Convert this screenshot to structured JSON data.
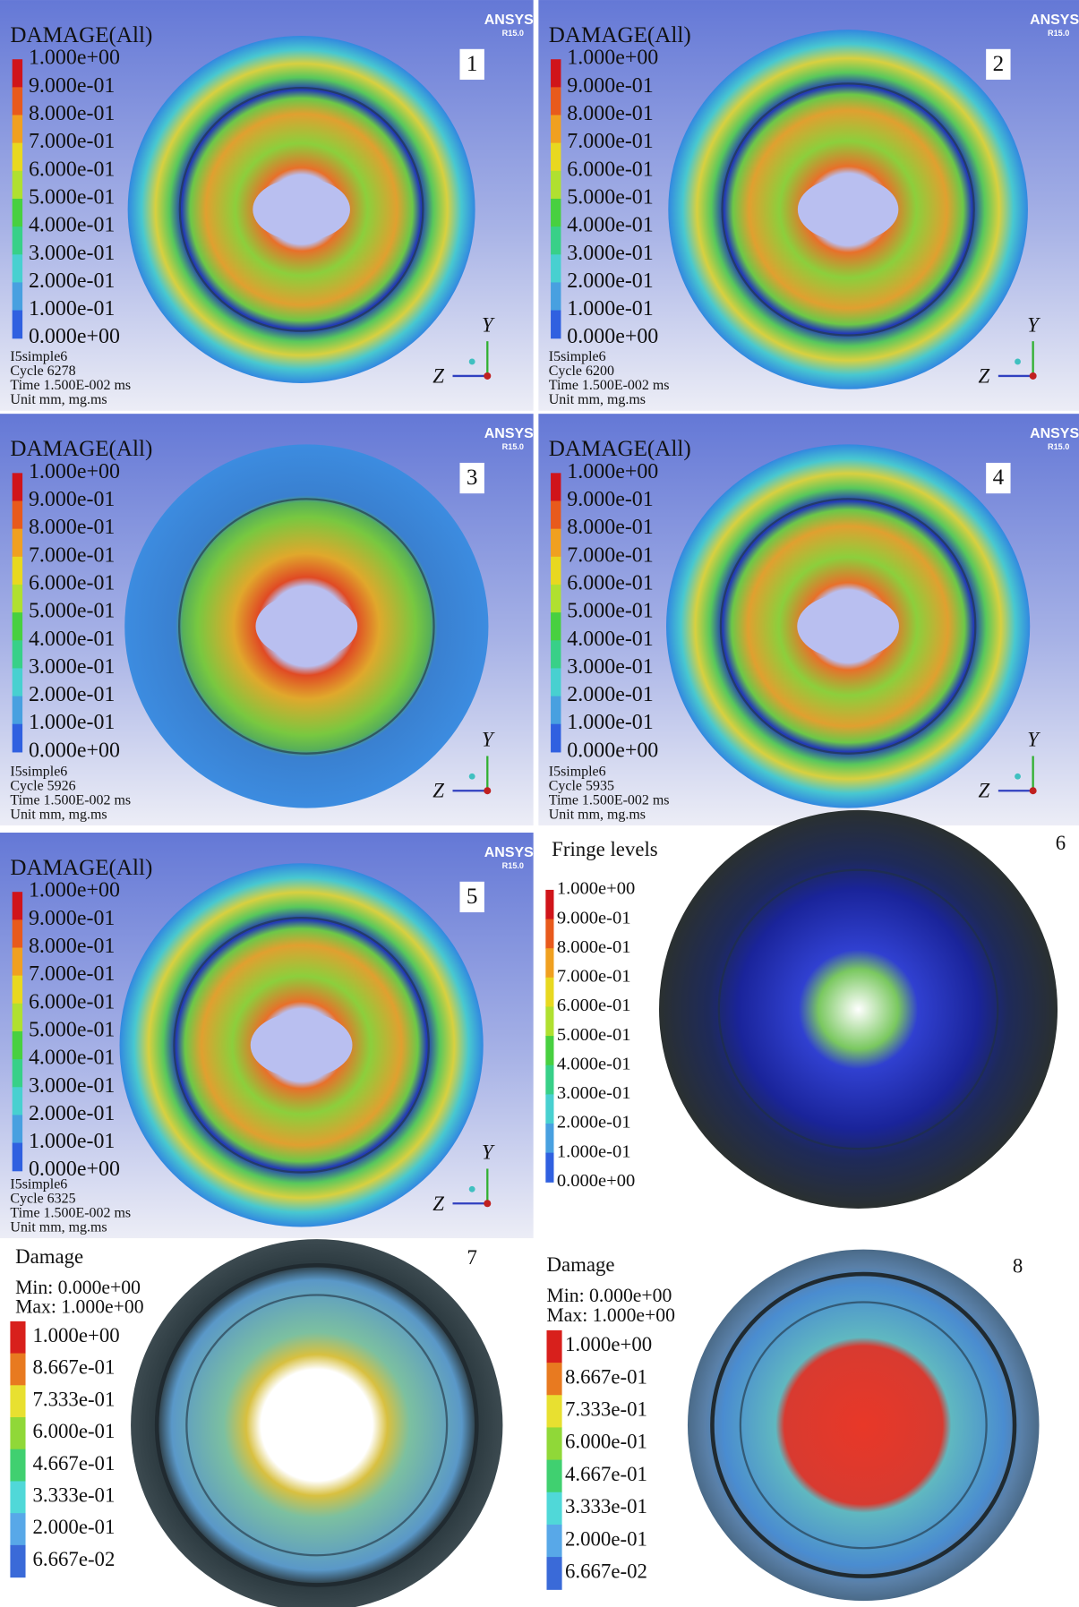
{
  "panels": [
    {
      "number": "1",
      "brand": "ANSYS",
      "version": "R15.0",
      "title": "DAMAGE(All)",
      "levels": [
        "1.000e+00",
        "9.000e-01",
        "8.000e-01",
        "7.000e-01",
        "6.000e-01",
        "5.000e-01",
        "4.000e-01",
        "3.000e-01",
        "2.000e-01",
        "1.000e-01",
        "0.000e+00"
      ],
      "info": [
        "I5simple6",
        "Cycle 6278",
        "Time 1.500E-002 ms",
        "Unit mm, mg.ms"
      ],
      "axes": [
        "Y",
        "Z"
      ]
    },
    {
      "number": "2",
      "brand": "ANSYS",
      "version": "R15.0",
      "title": "DAMAGE(All)",
      "levels": [
        "1.000e+00",
        "9.000e-01",
        "8.000e-01",
        "7.000e-01",
        "6.000e-01",
        "5.000e-01",
        "4.000e-01",
        "3.000e-01",
        "2.000e-01",
        "1.000e-01",
        "0.000e+00"
      ],
      "info": [
        "I5simple6",
        "Cycle 6200",
        "Time 1.500E-002 ms",
        "Unit mm, mg.ms"
      ],
      "axes": [
        "Y",
        "Z"
      ]
    },
    {
      "number": "3",
      "brand": "ANSYS",
      "version": "R15.0",
      "title": "DAMAGE(All)",
      "levels": [
        "1.000e+00",
        "9.000e-01",
        "8.000e-01",
        "7.000e-01",
        "6.000e-01",
        "5.000e-01",
        "4.000e-01",
        "3.000e-01",
        "2.000e-01",
        "1.000e-01",
        "0.000e+00"
      ],
      "info": [
        "I5simple6",
        "Cycle 5926",
        "Time 1.500E-002 ms",
        "Unit mm, mg.ms"
      ],
      "axes": [
        "Y",
        "Z"
      ]
    },
    {
      "number": "4",
      "brand": "ANSYS",
      "version": "R15.0",
      "title": "DAMAGE(All)",
      "levels": [
        "1.000e+00",
        "9.000e-01",
        "8.000e-01",
        "7.000e-01",
        "6.000e-01",
        "5.000e-01",
        "4.000e-01",
        "3.000e-01",
        "2.000e-01",
        "1.000e-01",
        "0.000e+00"
      ],
      "info": [
        "I5simple6",
        "Cycle 5935",
        "Time 1.500E-002 ms",
        "Unit mm, mg.ms"
      ],
      "axes": [
        "Y",
        "Z"
      ]
    },
    {
      "number": "5",
      "brand": "ANSYS",
      "version": "R15.0",
      "title": "DAMAGE(All)",
      "levels": [
        "1.000e+00",
        "9.000e-01",
        "8.000e-01",
        "7.000e-01",
        "6.000e-01",
        "5.000e-01",
        "4.000e-01",
        "3.000e-01",
        "2.000e-01",
        "1.000e-01",
        "0.000e+00"
      ],
      "info": [
        "I5simple6",
        "Cycle 6325",
        "Time 1.500E-002 ms",
        "Unit mm, mg.ms"
      ],
      "axes": [
        "Y",
        "Z"
      ]
    },
    {
      "number": "6",
      "title": "Fringe levels",
      "levels": [
        "1.000e+00",
        "9.000e-01",
        "8.000e-01",
        "7.000e-01",
        "6.000e-01",
        "5.000e-01",
        "4.000e-01",
        "3.000e-01",
        "2.000e-01",
        "1.000e-01",
        "0.000e+00"
      ]
    },
    {
      "number": "7",
      "title": "Damage",
      "min": "Min: 0.000e+00",
      "max": "Max: 1.000e+00",
      "levels": [
        "1.000e+00",
        "8.667e-01",
        "7.333e-01",
        "6.000e-01",
        "4.667e-01",
        "3.333e-01",
        "2.000e-01",
        "6.667e-02"
      ]
    },
    {
      "number": "8",
      "title": "Damage",
      "min": "Min: 0.000e+00",
      "max": "Max: 1.000e+00",
      "levels": [
        "1.000e+00",
        "8.667e-01",
        "7.333e-01",
        "6.000e-01",
        "4.667e-01",
        "3.333e-01",
        "2.000e-01",
        "6.667e-02"
      ]
    }
  ]
}
